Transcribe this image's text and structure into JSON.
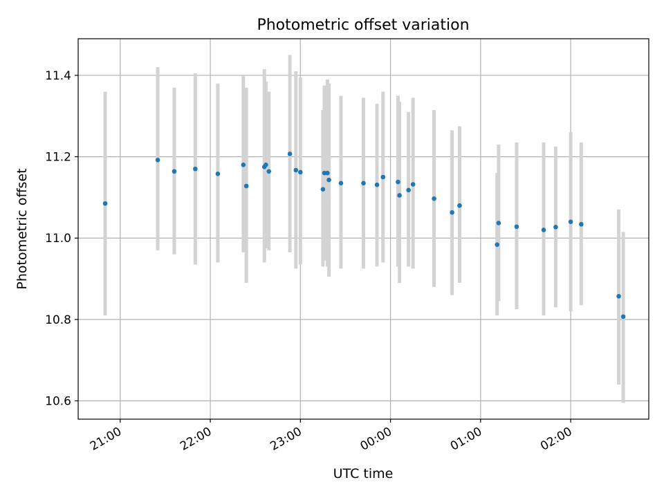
{
  "chart_data": {
    "type": "scatter",
    "title": "Photometric offset variation",
    "xlabel": "UTC time",
    "ylabel": "Photometric offset",
    "xlim": [
      "20:32",
      "26:52"
    ],
    "ylim": [
      10.555,
      11.49
    ],
    "x_ticks": [
      "21:00",
      "22:00",
      "23:00",
      "00:00",
      "01:00",
      "02:00"
    ],
    "y_ticks": [
      "10.6",
      "10.8",
      "11.0",
      "11.2",
      "11.4"
    ],
    "grid": true,
    "legend": "none",
    "x_unit": "hours since 00:00 UTC of the first night; values ≥24 are after midnight",
    "colors": {
      "points": "#1f77b4",
      "error_bars": "#d3d3d3",
      "grid": "#b0b0b0"
    },
    "series": [
      {
        "points": [
          {
            "t": "20:50",
            "y": 11.085,
            "lo": 10.81,
            "hi": 11.36
          },
          {
            "t": "21:25",
            "y": 11.192,
            "lo": 10.97,
            "hi": 11.42
          },
          {
            "t": "21:36",
            "y": 11.164,
            "lo": 10.96,
            "hi": 11.37
          },
          {
            "t": "21:50",
            "y": 11.17,
            "lo": 10.935,
            "hi": 11.405
          },
          {
            "t": "22:05",
            "y": 11.158,
            "lo": 10.94,
            "hi": 11.38
          },
          {
            "t": "22:22",
            "y": 11.18,
            "lo": 10.965,
            "hi": 11.4
          },
          {
            "t": "22:24",
            "y": 11.128,
            "lo": 10.89,
            "hi": 11.37
          },
          {
            "t": "22:36",
            "y": 11.175,
            "lo": 10.94,
            "hi": 11.415
          },
          {
            "t": "22:37",
            "y": 11.18,
            "lo": 10.975,
            "hi": 11.385
          },
          {
            "t": "22:39",
            "y": 11.164,
            "lo": 10.97,
            "hi": 11.36
          },
          {
            "t": "22:53",
            "y": 11.207,
            "lo": 10.965,
            "hi": 11.45
          },
          {
            "t": "22:57",
            "y": 11.167,
            "lo": 10.925,
            "hi": 11.41
          },
          {
            "t": "23:00",
            "y": 11.162,
            "lo": 10.935,
            "hi": 11.395
          },
          {
            "t": "23:15",
            "y": 11.12,
            "lo": 10.93,
            "hi": 11.315
          },
          {
            "t": "23:16",
            "y": 11.16,
            "lo": 10.945,
            "hi": 11.375
          },
          {
            "t": "23:18",
            "y": 11.16,
            "lo": 10.93,
            "hi": 11.39
          },
          {
            "t": "23:19",
            "y": 11.143,
            "lo": 10.905,
            "hi": 11.38
          },
          {
            "t": "23:27",
            "y": 11.135,
            "lo": 10.925,
            "hi": 11.35
          },
          {
            "t": "23:42",
            "y": 11.135,
            "lo": 10.925,
            "hi": 11.345
          },
          {
            "t": "23:51",
            "y": 11.131,
            "lo": 10.93,
            "hi": 11.33
          },
          {
            "t": "23:55",
            "y": 11.15,
            "lo": 10.94,
            "hi": 11.36
          },
          {
            "t": "24:05",
            "y": 11.138,
            "lo": 10.93,
            "hi": 11.35
          },
          {
            "t": "24:06",
            "y": 11.105,
            "lo": 10.89,
            "hi": 11.335
          },
          {
            "t": "24:12",
            "y": 11.118,
            "lo": 10.93,
            "hi": 11.31
          },
          {
            "t": "24:15",
            "y": 11.132,
            "lo": 10.925,
            "hi": 11.345
          },
          {
            "t": "24:29",
            "y": 11.097,
            "lo": 10.88,
            "hi": 11.315
          },
          {
            "t": "24:41",
            "y": 11.063,
            "lo": 10.86,
            "hi": 11.265
          },
          {
            "t": "24:46",
            "y": 11.08,
            "lo": 10.89,
            "hi": 11.275
          },
          {
            "t": "25:11",
            "y": 10.984,
            "lo": 10.81,
            "hi": 11.16
          },
          {
            "t": "25:12",
            "y": 11.037,
            "lo": 10.845,
            "hi": 11.23
          },
          {
            "t": "25:24",
            "y": 11.028,
            "lo": 10.825,
            "hi": 11.235
          },
          {
            "t": "25:42",
            "y": 11.02,
            "lo": 10.81,
            "hi": 11.235
          },
          {
            "t": "25:50",
            "y": 11.027,
            "lo": 10.83,
            "hi": 11.225
          },
          {
            "t": "26:00",
            "y": 11.04,
            "lo": 10.82,
            "hi": 11.26
          },
          {
            "t": "26:07",
            "y": 11.034,
            "lo": 10.835,
            "hi": 11.235
          },
          {
            "t": "26:32",
            "y": 10.857,
            "lo": 10.64,
            "hi": 11.07
          },
          {
            "t": "26:35",
            "y": 10.807,
            "lo": 10.595,
            "hi": 11.015
          }
        ]
      }
    ]
  }
}
